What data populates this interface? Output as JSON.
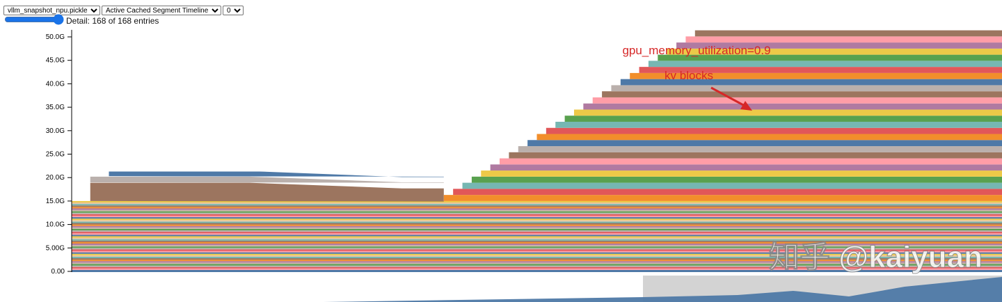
{
  "controls": {
    "snapshot_select": {
      "selected": "vllm_snapshot_npu.pickle"
    },
    "view_select": {
      "selected": "Active Cached Segment Timeline"
    },
    "device_select": {
      "selected": "0"
    },
    "detail_label": "Detail: 168 of 168 entries",
    "detail_value": 168,
    "detail_max": 168
  },
  "chart_data": {
    "type": "area",
    "title": "",
    "xlabel": "",
    "ylabel": "",
    "ylim": [
      0,
      52
    ],
    "y_ticks": [
      {
        "value": 0,
        "label": "0.00"
      },
      {
        "value": 5,
        "label": "5.00G"
      },
      {
        "value": 10,
        "label": "10.0G"
      },
      {
        "value": 15,
        "label": "15.0G"
      },
      {
        "value": 20,
        "label": "20.0G"
      },
      {
        "value": 25,
        "label": "25.0G"
      },
      {
        "value": 30,
        "label": "30.0G"
      },
      {
        "value": 35,
        "label": "35.0G"
      },
      {
        "value": 40,
        "label": "40.0G"
      },
      {
        "value": 45,
        "label": "45.0G"
      },
      {
        "value": 50,
        "label": "50.0G"
      }
    ],
    "grid": false,
    "legend": "none",
    "xlim": [
      0,
      100
    ],
    "base_layers_top": 15.0,
    "early_segments": [
      {
        "x_start": 2,
        "x_end": 40,
        "bottom": 15.0,
        "top": 18.9,
        "color": "#9c755f"
      },
      {
        "x_start": 2,
        "x_end": 40,
        "bottom": 19.0,
        "top": 20.2,
        "color": "#bab0ac"
      },
      {
        "x_start": 4,
        "x_end": 40,
        "bottom": 20.3,
        "top": 21.3,
        "color": "#4e79a7"
      }
    ],
    "kv_blocks": {
      "start_x": 40,
      "step_x": 1,
      "start_bottom": 15.0,
      "block_size": 1.3,
      "count": 28,
      "colors": [
        "#f28e2b",
        "#e15759",
        "#76b7b2",
        "#59a14f",
        "#edc948",
        "#b07aa1",
        "#ff9da7",
        "#9c755f",
        "#bab0ac",
        "#4e79a7"
      ]
    },
    "annotations": [
      {
        "text": "gpu_memory_utilization=0.9",
        "color": "#d62728"
      },
      {
        "text": "kv blocks",
        "color": "#d62728"
      }
    ]
  },
  "watermark": "知乎 @kaiyuan"
}
